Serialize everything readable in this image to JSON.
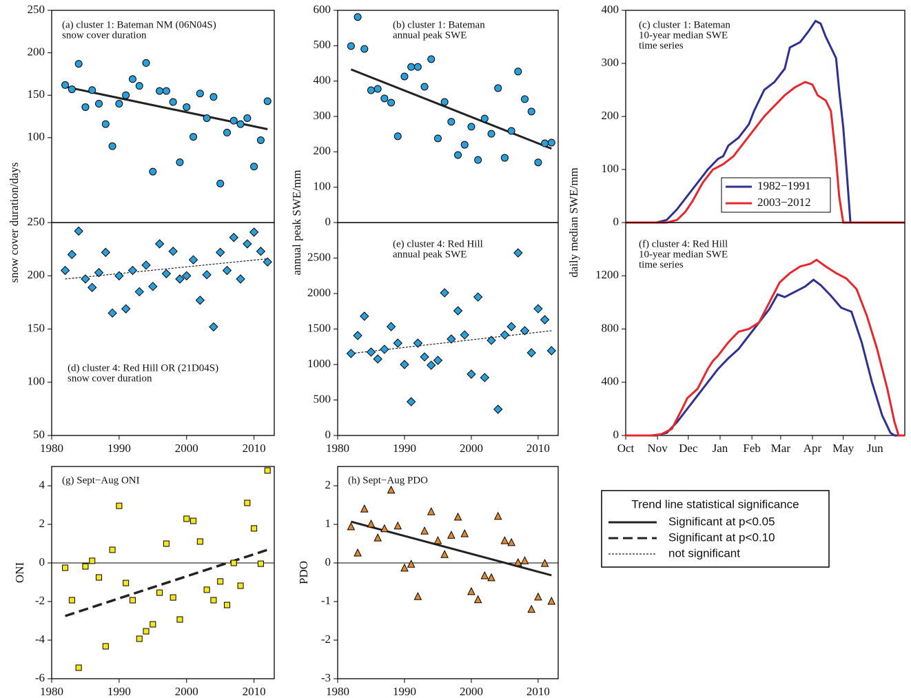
{
  "chart_data": [
    {
      "type": "scatter",
      "title": "(a) cluster 1: Bateman NM (06N04S)",
      "subtitle": "snow cover duration",
      "ylabel": "snow cover duration/days",
      "marker": "circle",
      "color": "#2aa0da",
      "xlim": [
        1980,
        2013
      ],
      "ylim": [
        0,
        250
      ],
      "yticks": [
        100,
        150,
        200,
        250
      ],
      "x": [
        1982,
        1983,
        1984,
        1985,
        1986,
        1987,
        1988,
        1989,
        1990,
        1991,
        1992,
        1993,
        1994,
        1995,
        1996,
        1997,
        1998,
        1999,
        2000,
        2001,
        2002,
        2003,
        2004,
        2005,
        2006,
        2007,
        2008,
        2009,
        2010,
        2011,
        2012
      ],
      "values": [
        162,
        157,
        187,
        136,
        156,
        140,
        116,
        90,
        140,
        150,
        169,
        161,
        188,
        60,
        155,
        155,
        142,
        71,
        136,
        101,
        152,
        123,
        148,
        46,
        106,
        120,
        116,
        123,
        66,
        97,
        143
      ],
      "trend": {
        "x": [
          1982,
          2012
        ],
        "values": [
          160,
          110
        ],
        "style": "solid"
      }
    },
    {
      "type": "scatter",
      "title": "(b) cluster 1: Bateman",
      "subtitle": "annual peak SWE",
      "ylabel": "annual peak SWE/mm",
      "marker": "circle",
      "color": "#2aa0da",
      "xlim": [
        1980,
        2013
      ],
      "ylim": [
        0,
        600
      ],
      "yticks": [
        0,
        100,
        200,
        300,
        400,
        500,
        600
      ],
      "x": [
        1982,
        1983,
        1984,
        1985,
        1986,
        1987,
        1988,
        1989,
        1990,
        1991,
        1992,
        1993,
        1994,
        1995,
        1996,
        1997,
        1998,
        1999,
        2000,
        2001,
        2002,
        2003,
        2004,
        2005,
        2006,
        2007,
        2008,
        2009,
        2010,
        2011,
        2012
      ],
      "values": [
        499,
        581,
        491,
        374,
        378,
        351,
        339,
        244,
        413,
        440,
        440,
        384,
        462,
        238,
        341,
        285,
        191,
        220,
        271,
        177,
        294,
        251,
        380,
        183,
        259,
        427,
        349,
        314,
        170,
        224,
        226
      ],
      "trend": {
        "x": [
          1982,
          2012
        ],
        "values": [
          433,
          209
        ],
        "style": "solid"
      }
    },
    {
      "type": "line",
      "title": "(c) cluster 1: Bateman",
      "subtitle": "10-year median SWE",
      "subtitle2": "time series",
      "ylabel": "daily median SWE/mm",
      "xlim": [
        0,
        272
      ],
      "ylim": [
        0,
        400
      ],
      "yticks": [
        0,
        100,
        200,
        300,
        400
      ],
      "legend": "lower right",
      "series": [
        {
          "name": "1982−1991",
          "color": "#2e3192",
          "x": [
            0,
            30,
            40,
            50,
            60,
            70,
            80,
            90,
            95,
            100,
            110,
            120,
            125,
            135,
            145,
            155,
            160,
            170,
            178,
            185,
            190,
            195,
            200,
            205,
            208,
            212,
            216,
            219,
            272
          ],
          "values": [
            0,
            0,
            5,
            25,
            50,
            75,
            100,
            120,
            125,
            145,
            160,
            185,
            210,
            250,
            265,
            290,
            330,
            340,
            360,
            380,
            375,
            350,
            330,
            310,
            250,
            180,
            80,
            0,
            0
          ]
        },
        {
          "name": "2003−2012",
          "color": "#e8262b",
          "x": [
            0,
            40,
            50,
            58,
            65,
            75,
            85,
            95,
            105,
            115,
            125,
            135,
            145,
            155,
            165,
            175,
            182,
            187,
            195,
            200,
            205,
            208,
            212,
            272
          ],
          "values": [
            0,
            0,
            5,
            20,
            40,
            75,
            100,
            110,
            125,
            150,
            175,
            200,
            220,
            240,
            255,
            265,
            260,
            240,
            230,
            210,
            120,
            50,
            0,
            0
          ]
        }
      ]
    },
    {
      "type": "scatter",
      "title": "(d) cluster 4: Red Hill OR (21D04S)",
      "subtitle": "snow cover duration",
      "marker": "diamond",
      "color": "#2aa0da",
      "xlim": [
        1980,
        2013
      ],
      "ylim": [
        50,
        250
      ],
      "yticks": [
        50,
        100,
        150,
        200,
        250
      ],
      "xticks": [
        1980,
        1990,
        2000,
        2010
      ],
      "x": [
        1982,
        1983,
        1984,
        1985,
        1986,
        1987,
        1988,
        1989,
        1990,
        1991,
        1992,
        1993,
        1994,
        1995,
        1996,
        1997,
        1998,
        1999,
        2000,
        2001,
        2002,
        2003,
        2004,
        2005,
        2006,
        2007,
        2008,
        2009,
        2010,
        2011,
        2012
      ],
      "values": [
        205,
        220,
        242,
        197,
        189,
        203,
        222,
        165,
        200,
        169,
        205,
        185,
        210,
        190,
        230,
        202,
        223,
        197,
        200,
        215,
        177,
        201,
        152,
        222,
        205,
        236,
        197,
        230,
        241,
        223,
        213
      ],
      "trend": {
        "x": [
          1982,
          2012
        ],
        "values": [
          197,
          216
        ],
        "style": "dotted"
      }
    },
    {
      "type": "scatter",
      "title": "(e) cluster 4: Red Hill",
      "subtitle": "annual peak SWE",
      "marker": "diamond",
      "color": "#2aa0da",
      "xlim": [
        1980,
        2013
      ],
      "ylim": [
        0,
        3000
      ],
      "yticks": [
        0,
        500,
        1000,
        1500,
        2000,
        2500
      ],
      "xticks": [
        1980,
        1990,
        2000,
        2010
      ],
      "x": [
        1982,
        1983,
        1984,
        1985,
        1986,
        1987,
        1988,
        1989,
        1990,
        1991,
        1992,
        1993,
        1994,
        1995,
        1996,
        1997,
        1998,
        1999,
        2000,
        2001,
        2002,
        2003,
        2004,
        2005,
        2006,
        2007,
        2008,
        2009,
        2010,
        2011,
        2012
      ],
      "values": [
        1155,
        1408,
        1680,
        1175,
        1078,
        1214,
        1534,
        1301,
        1000,
        476,
        1301,
        1107,
        990,
        1058,
        2010,
        1359,
        1757,
        1417,
        864,
        1951,
        816,
        1340,
        369,
        1417,
        1534,
        2573,
        1476,
        1165,
        1786,
        1631,
        1194
      ],
      "trend": {
        "x": [
          1982,
          2012
        ],
        "values": [
          1155,
          1476
        ],
        "style": "dotted"
      }
    },
    {
      "type": "line",
      "title": "(f) cluster 4: Red Hill",
      "subtitle": "10-year median SWE",
      "subtitle2": "time series",
      "xlim": [
        0,
        272
      ],
      "ylim": [
        0,
        1600
      ],
      "yticks": [
        0,
        400,
        800,
        1200
      ],
      "xticks": [
        {
          "value": 0,
          "label": "Oct"
        },
        {
          "value": 31,
          "label": "Nov"
        },
        {
          "value": 61,
          "label": "Dec"
        },
        {
          "value": 92,
          "label": "Jan"
        },
        {
          "value": 123,
          "label": "Feb"
        },
        {
          "value": 151,
          "label": "Mar"
        },
        {
          "value": 182,
          "label": "Apr"
        },
        {
          "value": 212,
          "label": "May"
        },
        {
          "value": 243,
          "label": "Jun"
        }
      ],
      "series": [
        {
          "name": "1982−1991",
          "color": "#2e3192",
          "x": [
            0,
            30,
            40,
            50,
            60,
            70,
            80,
            90,
            100,
            110,
            120,
            130,
            140,
            148,
            155,
            165,
            175,
            183,
            190,
            200,
            210,
            220,
            230,
            240,
            250,
            258,
            262,
            272
          ],
          "values": [
            0,
            0,
            20,
            100,
            200,
            300,
            400,
            500,
            580,
            650,
            750,
            850,
            950,
            1060,
            1040,
            1080,
            1120,
            1170,
            1130,
            1050,
            960,
            930,
            700,
            400,
            150,
            20,
            0,
            0
          ]
        },
        {
          "name": "2003−2012",
          "color": "#e8262b",
          "x": [
            0,
            25,
            35,
            45,
            55,
            60,
            70,
            80,
            85,
            90,
            100,
            110,
            120,
            130,
            140,
            150,
            160,
            170,
            180,
            186,
            195,
            205,
            215,
            225,
            235,
            245,
            255,
            262,
            266,
            272
          ],
          "values": [
            0,
            0,
            10,
            50,
            200,
            280,
            350,
            500,
            560,
            600,
            700,
            780,
            800,
            850,
            1000,
            1150,
            1220,
            1270,
            1290,
            1320,
            1270,
            1220,
            1180,
            1100,
            900,
            650,
            350,
            100,
            0,
            0
          ]
        }
      ]
    },
    {
      "type": "scatter",
      "title": "(g) Sept−Aug ONI",
      "ylabel": "ONI",
      "marker": "square",
      "color": "#f5e71b",
      "xlim": [
        1980,
        2013
      ],
      "ylim": [
        -6,
        5
      ],
      "yticks": [
        -6,
        -4,
        -2,
        0,
        2,
        4
      ],
      "xticks": [
        1980,
        1990,
        2000,
        2010
      ],
      "reference_line": 0,
      "x": [
        1982,
        1983,
        1984,
        1985,
        1986,
        1987,
        1988,
        1989,
        1990,
        1991,
        1992,
        1993,
        1994,
        1995,
        1996,
        1997,
        1998,
        1999,
        2000,
        2001,
        2002,
        2003,
        2004,
        2005,
        2006,
        2007,
        2008,
        2009,
        2010,
        2011,
        2012
      ],
      "values": [
        -0.25,
        -1.93,
        -5.43,
        -0.18,
        0.11,
        -0.75,
        -4.32,
        0.68,
        2.96,
        -1.04,
        -1.93,
        -3.93,
        -3.54,
        -3.18,
        -1.54,
        1.0,
        -1.79,
        -2.93,
        2.29,
        2.18,
        1.11,
        -1.39,
        -1.93,
        -0.96,
        -2.18,
        0,
        -1.18,
        3.11,
        1.79,
        -0.04,
        4.79
      ],
      "trend": {
        "x": [
          1982,
          2012
        ],
        "values": [
          -2.75,
          0.68
        ],
        "style": "dashed"
      }
    },
    {
      "type": "scatter",
      "title": "(h) Sept−Aug PDO",
      "ylabel": "PDO",
      "marker": "triangle",
      "color": "#e08a2e",
      "xlim": [
        1980,
        2013
      ],
      "ylim": [
        -3,
        2.5
      ],
      "yticks": [
        -3,
        -2,
        -1,
        0,
        1,
        2
      ],
      "xticks": [
        1980,
        1990,
        2000,
        2010
      ],
      "reference_line": 0,
      "x": [
        1982,
        1983,
        1984,
        1985,
        1986,
        1987,
        1988,
        1989,
        1990,
        1991,
        1992,
        1993,
        1994,
        1995,
        1996,
        1997,
        1998,
        1999,
        2000,
        2001,
        2002,
        2003,
        2004,
        2005,
        2006,
        2007,
        2008,
        2009,
        2010,
        2011,
        2012
      ],
      "values": [
        0.93,
        0.25,
        1.39,
        1.0,
        0.64,
        0.88,
        1.88,
        0.95,
        -0.14,
        -0.04,
        -0.88,
        0.82,
        1.32,
        0.57,
        0.21,
        0.71,
        1.18,
        0.75,
        -0.75,
        -0.96,
        -0.34,
        -0.39,
        1.2,
        0.57,
        0.52,
        0,
        0.05,
        -1.21,
        -0.89,
        -0.02,
        -1.0
      ],
      "trend": {
        "x": [
          1982,
          2012
        ],
        "values": [
          1.07,
          -0.32
        ],
        "style": "solid"
      }
    }
  ],
  "legend_box": {
    "title": "Trend line statistical significance",
    "items": [
      "Significant at p<0.05",
      "Significant at p<0.10",
      "not significant"
    ]
  }
}
